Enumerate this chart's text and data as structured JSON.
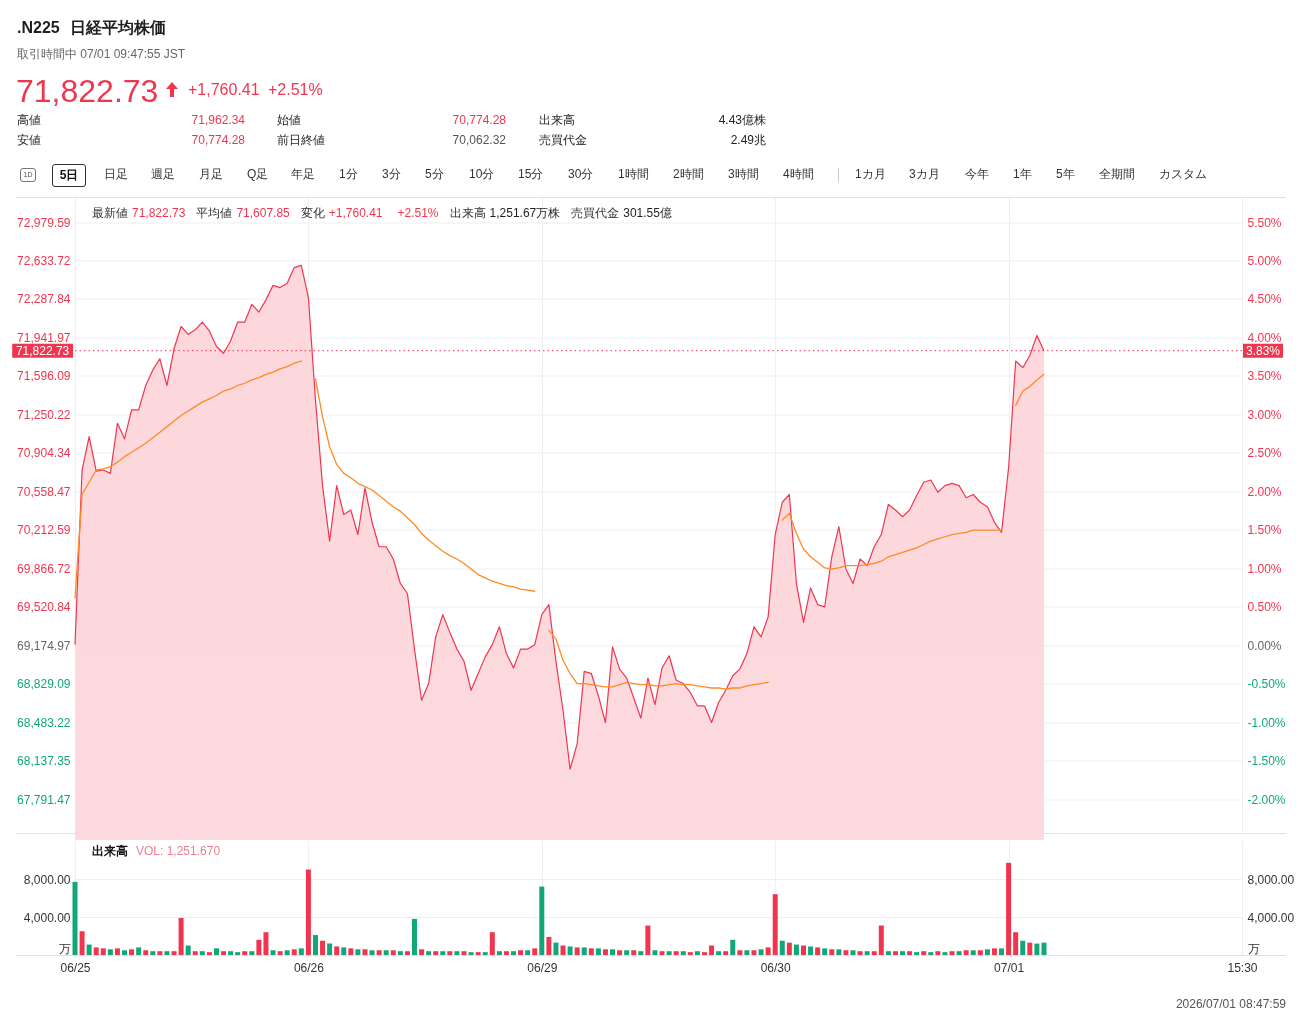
{
  "chart_data": [
    {
      "type": "area",
      "title": ".N225 日経平均株価",
      "subtitle": "取引時間中 07/01 09:47:55 JST",
      "annotations": [
        "71,822.73",
        "+1,760.41",
        "+2.51%",
        "高値",
        "71,962.34",
        "始値",
        "70,774.28",
        "出来高",
        "4.43億株",
        "安値",
        "70,774.28",
        "前日終値",
        "70,062.32",
        "売買代金",
        "2.49兆",
        "1D",
        "5日",
        "日足",
        "週足",
        "月足",
        "Q足",
        "年足",
        "1分",
        "3分",
        "5分",
        "10分",
        "15分",
        "30分",
        "1時間",
        "2時間",
        "3時間",
        "4時間",
        "1カ月",
        "3カ月",
        "今年",
        "1年",
        "5年",
        "全期間",
        "カスタム",
        "最新値",
        "71,822.73",
        "平均値",
        "71,607.85",
        "変化",
        "+1,760.41",
        "+2.51%",
        "出来高",
        "1,251.67万株",
        "売買代金",
        "301.55億",
        {
          "text": "3.83%",
          "y": 71822.73
        }
      ],
      "categories": [
        null,
        null,
        null,
        null,
        null,
        null,
        null,
        null,
        null,
        null,
        null,
        null,
        null,
        null,
        null,
        null,
        null,
        null,
        null,
        null,
        null,
        null,
        null,
        null,
        null,
        null,
        null,
        null,
        null,
        null,
        null,
        null,
        null,
        null,
        null,
        null,
        null,
        null,
        null,
        null,
        null,
        null,
        null,
        null,
        null,
        null,
        null,
        null,
        null,
        null,
        null,
        null,
        null,
        null,
        null,
        null,
        null,
        null,
        null,
        null,
        null,
        null,
        null,
        null,
        null,
        null,
        null,
        null,
        null,
        null,
        null,
        null,
        null,
        null,
        null,
        null,
        null,
        null,
        null,
        null,
        null,
        null,
        null,
        null,
        null,
        null,
        null,
        null,
        null,
        null,
        null,
        null,
        null,
        null,
        null,
        null,
        null,
        null,
        null,
        null,
        null,
        null,
        null,
        null,
        null,
        null,
        null,
        null,
        null,
        null,
        null,
        null,
        null,
        null,
        null,
        null,
        null,
        null,
        null,
        null,
        null,
        null,
        null,
        null,
        null,
        null,
        null,
        null,
        null,
        null,
        null,
        null,
        null,
        null,
        null,
        null,
        null,
        null,
        null,
        null,
        null,
        null,
        null,
        null,
        null,
        null,
        null,
        null,
        null,
        null,
        null,
        null,
        null,
        null,
        null,
        null,
        null,
        null,
        null,
        null,
        null,
        null,
        null,
        null,
        null,
        null
      ],
      "ylim": [
        67500,
        73200
      ],
      "yticks": [
        {
          "value": 72979.59,
          "label": "72,979.59"
        },
        {
          "value": 72633.72,
          "label": "72,633.72"
        },
        {
          "value": 72287.84,
          "label": "72,287.84"
        },
        {
          "value": 71941.97,
          "label": "71,941.97"
        },
        {
          "value": 71596.09,
          "label": "71,596.09"
        },
        {
          "value": 71250.22,
          "label": "71,250.22"
        },
        {
          "value": 70904.34,
          "label": "70,904.34"
        },
        {
          "value": 70558.47,
          "label": "70,558.47"
        },
        {
          "value": 70212.59,
          "label": "70,212.59"
        },
        {
          "value": 69866.72,
          "label": "69,866.72"
        },
        {
          "value": 69520.84,
          "label": "69,520.84"
        },
        {
          "value": 69174.97,
          "label": "69,174.97"
        },
        {
          "value": 68829.09,
          "label": "68,829.09"
        },
        {
          "value": 68483.22,
          "label": "68,483.22"
        },
        {
          "value": 68137.35,
          "label": "68,137.35"
        },
        {
          "value": 67791.47,
          "label": "67,791.47"
        }
      ],
      "y2lim": [
        -2.421,
        5.819
      ],
      "y2ticks": [
        {
          "value": 5.5,
          "label": "5.50%"
        },
        {
          "value": 5,
          "label": "5.00%"
        },
        {
          "value": 4.5,
          "label": "4.50%"
        },
        {
          "value": 4,
          "label": "4.00%"
        },
        {
          "value": 3.5,
          "label": "3.50%"
        },
        {
          "value": 3,
          "label": "3.00%"
        },
        {
          "value": 2.5,
          "label": "2.50%"
        },
        {
          "value": 2,
          "label": "2.00%"
        },
        {
          "value": 1.5,
          "label": "1.50%"
        },
        {
          "value": 1,
          "label": "1.00%"
        },
        {
          "value": 0.5,
          "label": "0.50%"
        },
        {
          "value": 0,
          "label": "0.00%"
        },
        {
          "value": -0.5,
          "label": "-0.50%"
        },
        {
          "value": -1,
          "label": "-1.00%"
        },
        {
          "value": -1.5,
          "label": "-1.50%"
        },
        {
          "value": -2,
          "label": "-2.00%"
        }
      ],
      "tick_labels": "y",
      "grid": true,
      "ref_lines": [
        {
          "axis": "y",
          "value": 71822.73,
          "label": "71,822.73",
          "color": "#f0364f",
          "line_style": "dotted"
        }
      ],
      "series": [
        {
          "color": "#f0364f",
          "values": [
            69180,
            70750,
            71050,
            70740,
            70750,
            70720,
            71170,
            71030,
            71290,
            71290,
            71510,
            71650,
            71750,
            71510,
            71840,
            72040,
            71970,
            72010,
            72080,
            72000,
            71860,
            71800,
            71910,
            72080,
            72080,
            72240,
            72170,
            72280,
            72410,
            72390,
            72430,
            72570,
            72590,
            72300,
            71380,
            70610,
            70110,
            70610,
            70350,
            70390,
            70170,
            70590,
            70280,
            70060,
            70060,
            69950,
            69730,
            69640,
            69140,
            68680,
            68830,
            69250,
            69450,
            69290,
            69140,
            69030,
            68770,
            68920,
            69070,
            69180,
            69340,
            69100,
            68970,
            69140,
            69140,
            69180,
            69450,
            69540,
            69030,
            68590,
            68060,
            68290,
            68940,
            68920,
            68720,
            68480,
            69160,
            68960,
            68880,
            68700,
            68520,
            68880,
            68640,
            68970,
            69080,
            68860,
            68830,
            68750,
            68630,
            68630,
            68480,
            68660,
            68770,
            68900,
            68960,
            69100,
            69340,
            69250,
            69430,
            70170,
            70460,
            70530,
            69730,
            69380,
            69690,
            69540,
            69520,
            69970,
            70240,
            69860,
            69730,
            69950,
            69890,
            70060,
            70170,
            70440,
            70390,
            70330,
            70390,
            70520,
            70640,
            70660,
            70550,
            70610,
            70630,
            70610,
            70500,
            70530,
            70460,
            70420,
            70280,
            70190,
            70770,
            71730,
            71670,
            71780,
            71960,
            71822.73,
            null,
            null,
            null,
            null,
            null,
            null,
            null,
            null,
            null,
            null,
            null,
            null,
            null,
            null,
            null,
            null,
            null,
            null,
            null,
            null,
            null,
            null,
            null,
            null,
            null,
            null,
            null,
            null
          ]
        },
        {
          "type": "line",
          "color": "#ff8a24",
          "values": [
            69600,
            70530,
            70640,
            70750,
            70760,
            70780,
            70820,
            70870,
            70910,
            70950,
            70990,
            71040,
            71090,
            71140,
            71190,
            71240,
            71280,
            71320,
            71360,
            71390,
            71420,
            71460,
            71480,
            71510,
            71530,
            71560,
            71580,
            71610,
            71630,
            71660,
            71680,
            71710,
            71730,
            null,
            71570,
            71230,
            70960,
            70800,
            70720,
            70680,
            70630,
            70600,
            70570,
            70520,
            70470,
            70420,
            70380,
            70320,
            70260,
            70180,
            70120,
            70070,
            70020,
            69980,
            69950,
            69910,
            69860,
            69810,
            69780,
            69750,
            69730,
            69710,
            69700,
            69680,
            69670,
            69660,
            null,
            69310,
            69230,
            69040,
            68920,
            68830,
            68830,
            68820,
            68810,
            68800,
            68800,
            68820,
            68840,
            68830,
            68820,
            68820,
            68810,
            68810,
            68820,
            68830,
            68820,
            68820,
            68810,
            68800,
            68790,
            68790,
            68780,
            68790,
            68790,
            68810,
            68820,
            68830,
            68840,
            null,
            70300,
            70360,
            70180,
            70040,
            69970,
            69920,
            69870,
            69860,
            69870,
            69890,
            69890,
            69890,
            69900,
            69910,
            69930,
            69970,
            69990,
            70010,
            70030,
            70050,
            70080,
            70110,
            70130,
            70150,
            70170,
            70180,
            70190,
            70210,
            70210,
            70210,
            70210,
            70210,
            null,
            71330,
            71460,
            71500,
            71560,
            71610,
            null,
            null,
            null,
            null,
            null,
            null,
            null,
            null,
            null,
            null,
            null,
            null,
            null,
            null,
            null,
            null,
            null,
            null,
            null,
            null,
            null,
            null,
            null,
            null,
            null,
            null,
            null,
            null
          ]
        }
      ]
    },
    {
      "type": "bar",
      "title": "出来高",
      "annotations": [
        "VOL: 1,251.670",
        "2026/07/01 08:47:59"
      ],
      "categories": [
        "06/25",
        null,
        null,
        null,
        null,
        null,
        null,
        null,
        null,
        null,
        null,
        null,
        null,
        null,
        null,
        null,
        null,
        null,
        null,
        null,
        null,
        null,
        null,
        null,
        null,
        null,
        null,
        null,
        null,
        null,
        null,
        null,
        null,
        "06/26",
        null,
        null,
        null,
        null,
        null,
        null,
        null,
        null,
        null,
        null,
        null,
        null,
        null,
        null,
        null,
        null,
        null,
        null,
        null,
        null,
        null,
        null,
        null,
        null,
        null,
        null,
        null,
        null,
        null,
        null,
        null,
        null,
        "06/29",
        null,
        null,
        null,
        null,
        null,
        null,
        null,
        null,
        null,
        null,
        null,
        null,
        null,
        null,
        null,
        null,
        null,
        null,
        null,
        null,
        null,
        null,
        null,
        null,
        null,
        null,
        null,
        null,
        null,
        null,
        null,
        null,
        "06/30",
        null,
        null,
        null,
        null,
        null,
        null,
        null,
        null,
        null,
        null,
        null,
        null,
        null,
        null,
        null,
        null,
        null,
        null,
        null,
        null,
        null,
        null,
        null,
        null,
        null,
        null,
        null,
        null,
        null,
        null,
        null,
        null,
        "07/01",
        null,
        null,
        null,
        null,
        null,
        null,
        null,
        null,
        null,
        null,
        null,
        null,
        null,
        null,
        null,
        null,
        null,
        null,
        null,
        null,
        null,
        null,
        null,
        null,
        null,
        null,
        null,
        null,
        null,
        null,
        null,
        null,
        "15:30"
      ],
      "ylim": [
        0,
        12000
      ],
      "yticks": [
        {
          "value": 0,
          "label": "万"
        },
        {
          "value": 4000,
          "label": "4,000.00"
        },
        {
          "value": 8000,
          "label": "8,000.00"
        }
      ],
      "y2lim": [
        0,
        12000
      ],
      "y2ticks": [
        {
          "value": 0,
          "label": "万"
        },
        {
          "value": 4000,
          "label": "4,000.00"
        },
        {
          "value": 8000,
          "label": "8,000.00"
        }
      ],
      "grid": true,
      "series": [
        {
          "color": "#f0364f",
          "values": [
            null,
            2500,
            null,
            800,
            700,
            null,
            700,
            null,
            600,
            null,
            500,
            null,
            400,
            null,
            400,
            3900,
            null,
            400,
            null,
            300,
            null,
            400,
            null,
            null,
            400,
            null,
            1600,
            2400,
            null,
            400,
            null,
            600,
            null,
            9000,
            null,
            1500,
            null,
            900,
            null,
            700,
            null,
            600,
            null,
            500,
            null,
            500,
            null,
            400,
            null,
            600,
            null,
            400,
            null,
            400,
            null,
            400,
            null,
            300,
            null,
            2400,
            null,
            400,
            null,
            500,
            null,
            700,
            null,
            1900,
            null,
            1000,
            null,
            800,
            null,
            700,
            null,
            600,
            null,
            500,
            null,
            500,
            null,
            3100,
            null,
            400,
            null,
            400,
            null,
            300,
            null,
            300,
            1000,
            null,
            400,
            null,
            500,
            null,
            500,
            null,
            800,
            6400,
            null,
            1300,
            null,
            1000,
            null,
            800,
            null,
            600,
            null,
            500,
            null,
            400,
            null,
            400,
            3100,
            null,
            400,
            null,
            400,
            null,
            400,
            null,
            400,
            null,
            400,
            null,
            500,
            null,
            500,
            null,
            700,
            null,
            9700,
            2400,
            null,
            1300,
            null,
            null,
            null,
            null,
            null,
            null,
            null,
            null,
            null,
            null,
            null,
            null,
            null,
            null,
            null,
            null,
            null,
            null,
            null,
            null,
            null,
            null,
            null,
            null,
            null,
            null,
            null,
            null,
            null,
            null
          ]
        },
        {
          "color": "#12a779",
          "values": [
            7700,
            null,
            1100,
            null,
            null,
            600,
            null,
            500,
            null,
            800,
            null,
            400,
            null,
            400,
            null,
            null,
            1000,
            null,
            400,
            null,
            700,
            null,
            400,
            300,
            null,
            400,
            null,
            null,
            500,
            null,
            500,
            null,
            700,
            null,
            2100,
            null,
            1200,
            null,
            800,
            null,
            600,
            null,
            500,
            null,
            500,
            null,
            400,
            null,
            3800,
            null,
            400,
            null,
            400,
            null,
            400,
            null,
            300,
            null,
            300,
            null,
            400,
            null,
            400,
            null,
            500,
            null,
            7200,
            null,
            1300,
            null,
            900,
            null,
            800,
            null,
            700,
            null,
            600,
            null,
            500,
            null,
            400,
            null,
            500,
            null,
            400,
            null,
            400,
            null,
            400,
            null,
            null,
            400,
            null,
            1600,
            null,
            500,
            null,
            600,
            null,
            null,
            1500,
            null,
            1100,
            null,
            900,
            null,
            700,
            null,
            600,
            null,
            500,
            null,
            400,
            null,
            null,
            400,
            null,
            400,
            null,
            300,
            null,
            300,
            null,
            300,
            null,
            400,
            null,
            500,
            null,
            600,
            null,
            700,
            null,
            null,
            1500,
            null,
            1200,
            1300,
            null,
            null,
            null,
            null,
            null,
            null,
            null,
            null,
            null,
            null,
            null,
            null,
            null,
            null,
            null,
            null,
            null,
            null,
            null,
            null,
            null,
            null,
            null,
            null,
            null,
            null,
            null,
            null
          ]
        }
      ]
    }
  ]
}
